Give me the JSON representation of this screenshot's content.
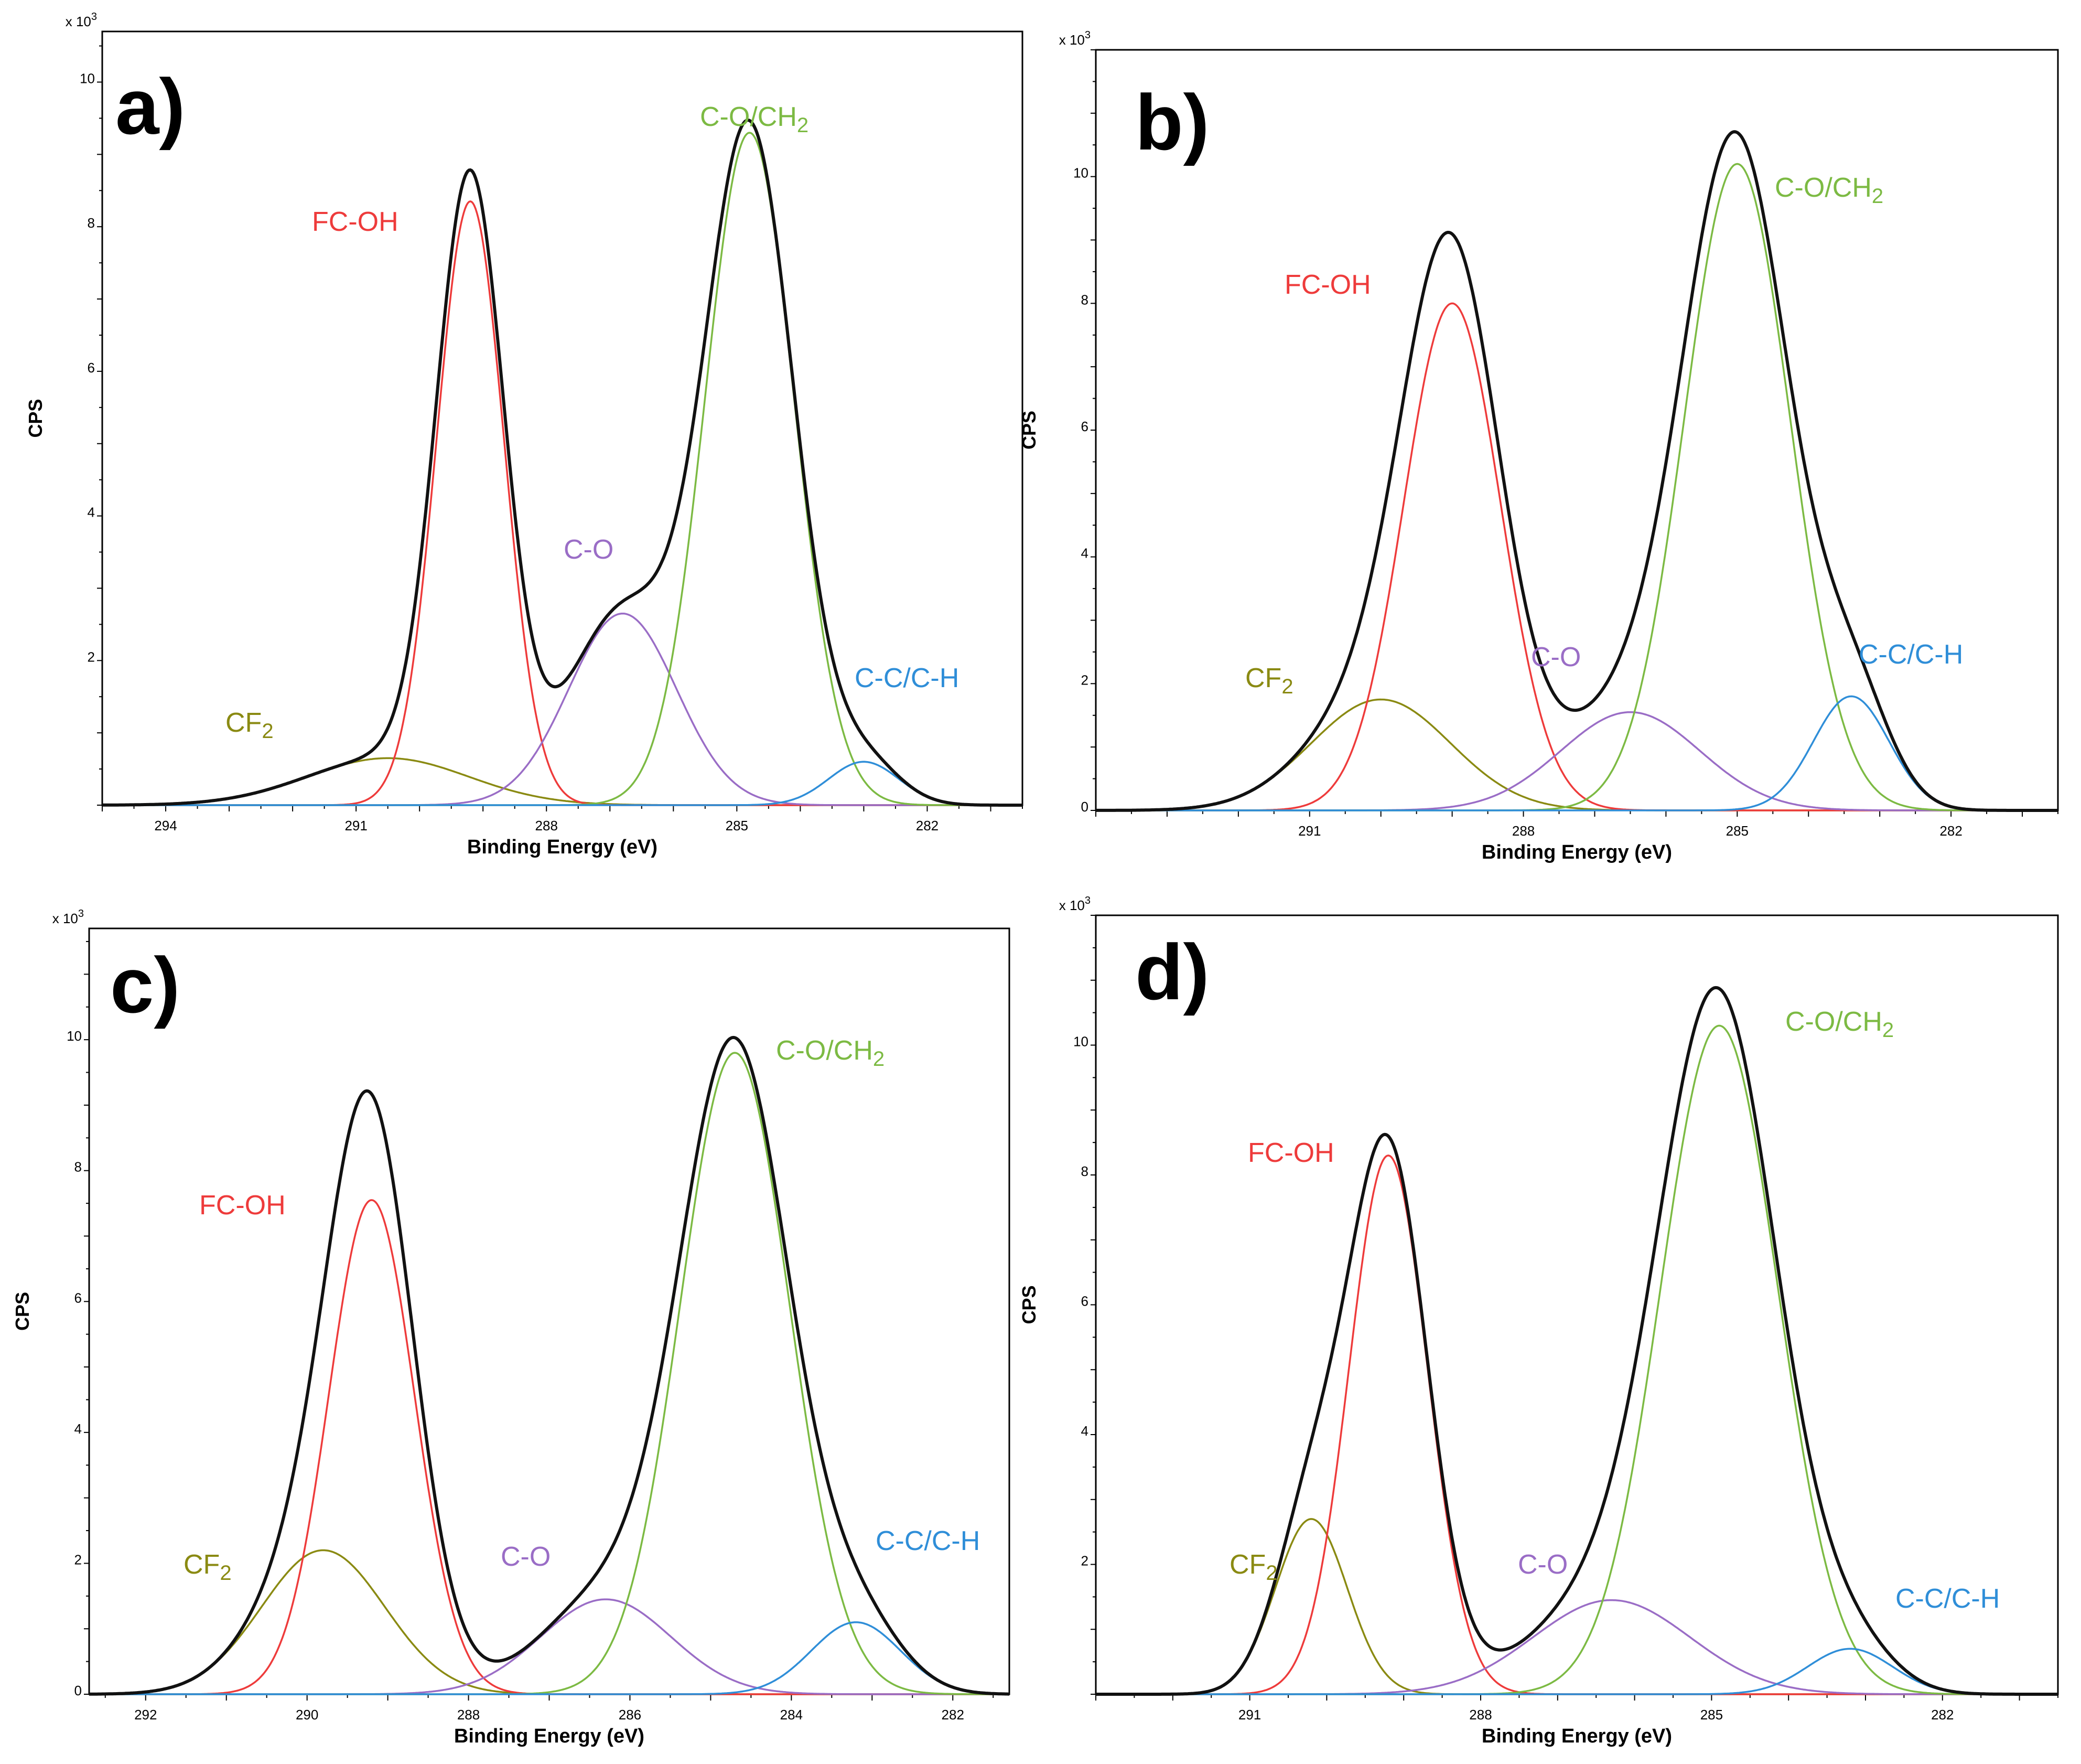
{
  "colors": {
    "envelope": "#111111",
    "FC-OH": "#ee3b3b",
    "C-O/CH2": "#7cba43",
    "C-O": "#9a6dc6",
    "CF2": "#8a8a12",
    "C-C/C-H": "#2f8ed8"
  },
  "chart_data": [
    {
      "type": "line",
      "panel": "a)",
      "xlabel": "Binding Energy (eV)",
      "ylabel": "CPS",
      "y_scale": "x 10",
      "y_scale_exp": "3",
      "xlim": [
        295,
        280.5
      ],
      "ylim": [
        0,
        10.7
      ],
      "xticks": [
        "294",
        "291",
        "288",
        "285",
        "282"
      ],
      "yticks": [
        "2",
        "4",
        "6",
        "8",
        "10"
      ],
      "series": [
        {
          "name": "CF2",
          "label": "CF",
          "sub": "2",
          "center": 290.5,
          "height": 0.65,
          "fwhm": 3.0
        },
        {
          "name": "FC-OH",
          "label": "FC-OH",
          "sub": "",
          "center": 289.2,
          "height": 8.35,
          "fwhm": 1.25
        },
        {
          "name": "C-O",
          "label": "C-O",
          "sub": "",
          "center": 286.8,
          "height": 2.65,
          "fwhm": 2.0
        },
        {
          "name": "C-O/CH2",
          "label": "C-O/CH",
          "sub": "2",
          "center": 284.8,
          "height": 9.3,
          "fwhm": 1.65
        },
        {
          "name": "C-C/C-H",
          "label": "C-C/C-H",
          "sub": "",
          "center": 283.0,
          "height": 0.6,
          "fwhm": 1.3
        }
      ]
    },
    {
      "type": "line",
      "panel": "b)",
      "xlabel": "Binding Energy (eV)",
      "ylabel": "CPS",
      "y_scale": "x 10",
      "y_scale_exp": "3",
      "xlim": [
        294,
        280.5
      ],
      "ylim": [
        0,
        12
      ],
      "xticks": [
        "291",
        "288",
        "285",
        "282"
      ],
      "yticks": [
        "0",
        "2",
        "4",
        "6",
        "8",
        "10"
      ],
      "series": [
        {
          "name": "CF2",
          "label": "CF",
          "sub": "2",
          "center": 290.0,
          "height": 1.75,
          "fwhm": 2.3
        },
        {
          "name": "FC-OH",
          "label": "FC-OH",
          "sub": "",
          "center": 289.0,
          "height": 8.0,
          "fwhm": 1.6
        },
        {
          "name": "C-O",
          "label": "C-O",
          "sub": "",
          "center": 286.5,
          "height": 1.55,
          "fwhm": 2.3
        },
        {
          "name": "C-O/CH2",
          "label": "C-O/CH",
          "sub": "2",
          "center": 285.0,
          "height": 10.2,
          "fwhm": 1.75
        },
        {
          "name": "C-C/C-H",
          "label": "C-C/C-H",
          "sub": "",
          "center": 283.4,
          "height": 1.8,
          "fwhm": 1.25
        }
      ]
    },
    {
      "type": "line",
      "panel": "c)",
      "xlabel": "Binding Energy (eV)",
      "ylabel": "CPS",
      "y_scale": "x 10",
      "y_scale_exp": "3",
      "xlim": [
        292.7,
        281.3
      ],
      "ylim": [
        0,
        11.7
      ],
      "xticks": [
        "292",
        "290",
        "288",
        "286",
        "284",
        "282"
      ],
      "yticks": [
        "0",
        "2",
        "4",
        "6",
        "8",
        "10"
      ],
      "series": [
        {
          "name": "CF2",
          "label": "CF",
          "sub": "2",
          "center": 289.8,
          "height": 2.2,
          "fwhm": 1.8
        },
        {
          "name": "FC-OH",
          "label": "FC-OH",
          "sub": "",
          "center": 289.2,
          "height": 7.55,
          "fwhm": 1.25
        },
        {
          "name": "C-O",
          "label": "C-O",
          "sub": "",
          "center": 286.3,
          "height": 1.45,
          "fwhm": 1.9
        },
        {
          "name": "C-O/CH2",
          "label": "C-O/CH",
          "sub": "2",
          "center": 284.7,
          "height": 9.8,
          "fwhm": 1.6
        },
        {
          "name": "C-C/C-H",
          "label": "C-C/C-H",
          "sub": "",
          "center": 283.2,
          "height": 1.1,
          "fwhm": 1.3
        }
      ]
    },
    {
      "type": "line",
      "panel": "d)",
      "xlabel": "Binding Energy (eV)",
      "ylabel": "CPS",
      "y_scale": "x 10",
      "y_scale_exp": "3",
      "xlim": [
        293,
        280.5
      ],
      "ylim": [
        0,
        12
      ],
      "xticks": [
        "291",
        "288",
        "285",
        "282"
      ],
      "yticks": [
        "2",
        "4",
        "6",
        "8",
        "10"
      ],
      "series": [
        {
          "name": "CF2",
          "label": "CF",
          "sub": "2",
          "center": 290.2,
          "height": 2.7,
          "fwhm": 1.1
        },
        {
          "name": "FC-OH",
          "label": "FC-OH",
          "sub": "",
          "center": 289.2,
          "height": 8.3,
          "fwhm": 1.2
        },
        {
          "name": "C-O",
          "label": "C-O",
          "sub": "",
          "center": 286.3,
          "height": 1.45,
          "fwhm": 2.4
        },
        {
          "name": "C-O/CH2",
          "label": "C-O/CH",
          "sub": "2",
          "center": 284.9,
          "height": 10.3,
          "fwhm": 1.8
        },
        {
          "name": "C-C/C-H",
          "label": "C-C/C-H",
          "sub": "",
          "center": 283.2,
          "height": 0.7,
          "fwhm": 1.3
        }
      ]
    }
  ]
}
